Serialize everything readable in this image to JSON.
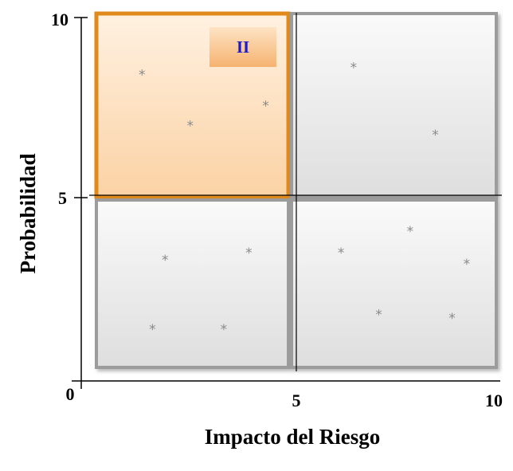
{
  "chart_data": {
    "type": "scatter",
    "title": "",
    "xlabel": "Impacto del Riesgo",
    "ylabel": "Probabilidad",
    "xlim": [
      0,
      10
    ],
    "ylim": [
      0,
      10
    ],
    "x_ticks": [
      "0",
      "5",
      "10"
    ],
    "y_ticks": [
      "0",
      "5",
      "10"
    ],
    "zero_label": "0",
    "grid": false,
    "quadrant_divider": [
      5,
      5
    ],
    "quadrants": [
      {
        "id": "top-left",
        "x_range": [
          0,
          5
        ],
        "y_range": [
          5,
          10
        ],
        "highlighted": true,
        "label": "II",
        "color": "#f6b874"
      },
      {
        "id": "top-right",
        "x_range": [
          5,
          10
        ],
        "y_range": [
          5,
          10
        ],
        "highlighted": false,
        "label": "",
        "color": "#e9e9e9"
      },
      {
        "id": "bottom-left",
        "x_range": [
          0,
          5
        ],
        "y_range": [
          0,
          5
        ],
        "highlighted": false,
        "label": "",
        "color": "#e9e9e9"
      },
      {
        "id": "bottom-right",
        "x_range": [
          5,
          10
        ],
        "y_range": [
          0,
          5
        ],
        "highlighted": false,
        "label": "",
        "color": "#e9e9e9"
      }
    ],
    "points": [
      {
        "x": 1.45,
        "y": 8.45
      },
      {
        "x": 2.6,
        "y": 7.05
      },
      {
        "x": 4.4,
        "y": 7.6
      },
      {
        "x": 6.5,
        "y": 8.65
      },
      {
        "x": 8.45,
        "y": 6.8
      },
      {
        "x": 2.0,
        "y": 3.35
      },
      {
        "x": 4.0,
        "y": 3.55
      },
      {
        "x": 1.7,
        "y": 1.45
      },
      {
        "x": 3.4,
        "y": 1.45
      },
      {
        "x": 6.2,
        "y": 3.55
      },
      {
        "x": 7.85,
        "y": 4.15
      },
      {
        "x": 9.2,
        "y": 3.25
      },
      {
        "x": 7.1,
        "y": 1.85
      },
      {
        "x": 8.85,
        "y": 1.75
      }
    ],
    "marker": "*",
    "colors": {
      "highlight_border": "#e08a1e",
      "badge_text": "#1a1acc",
      "marker": "#8a8a8a"
    }
  }
}
